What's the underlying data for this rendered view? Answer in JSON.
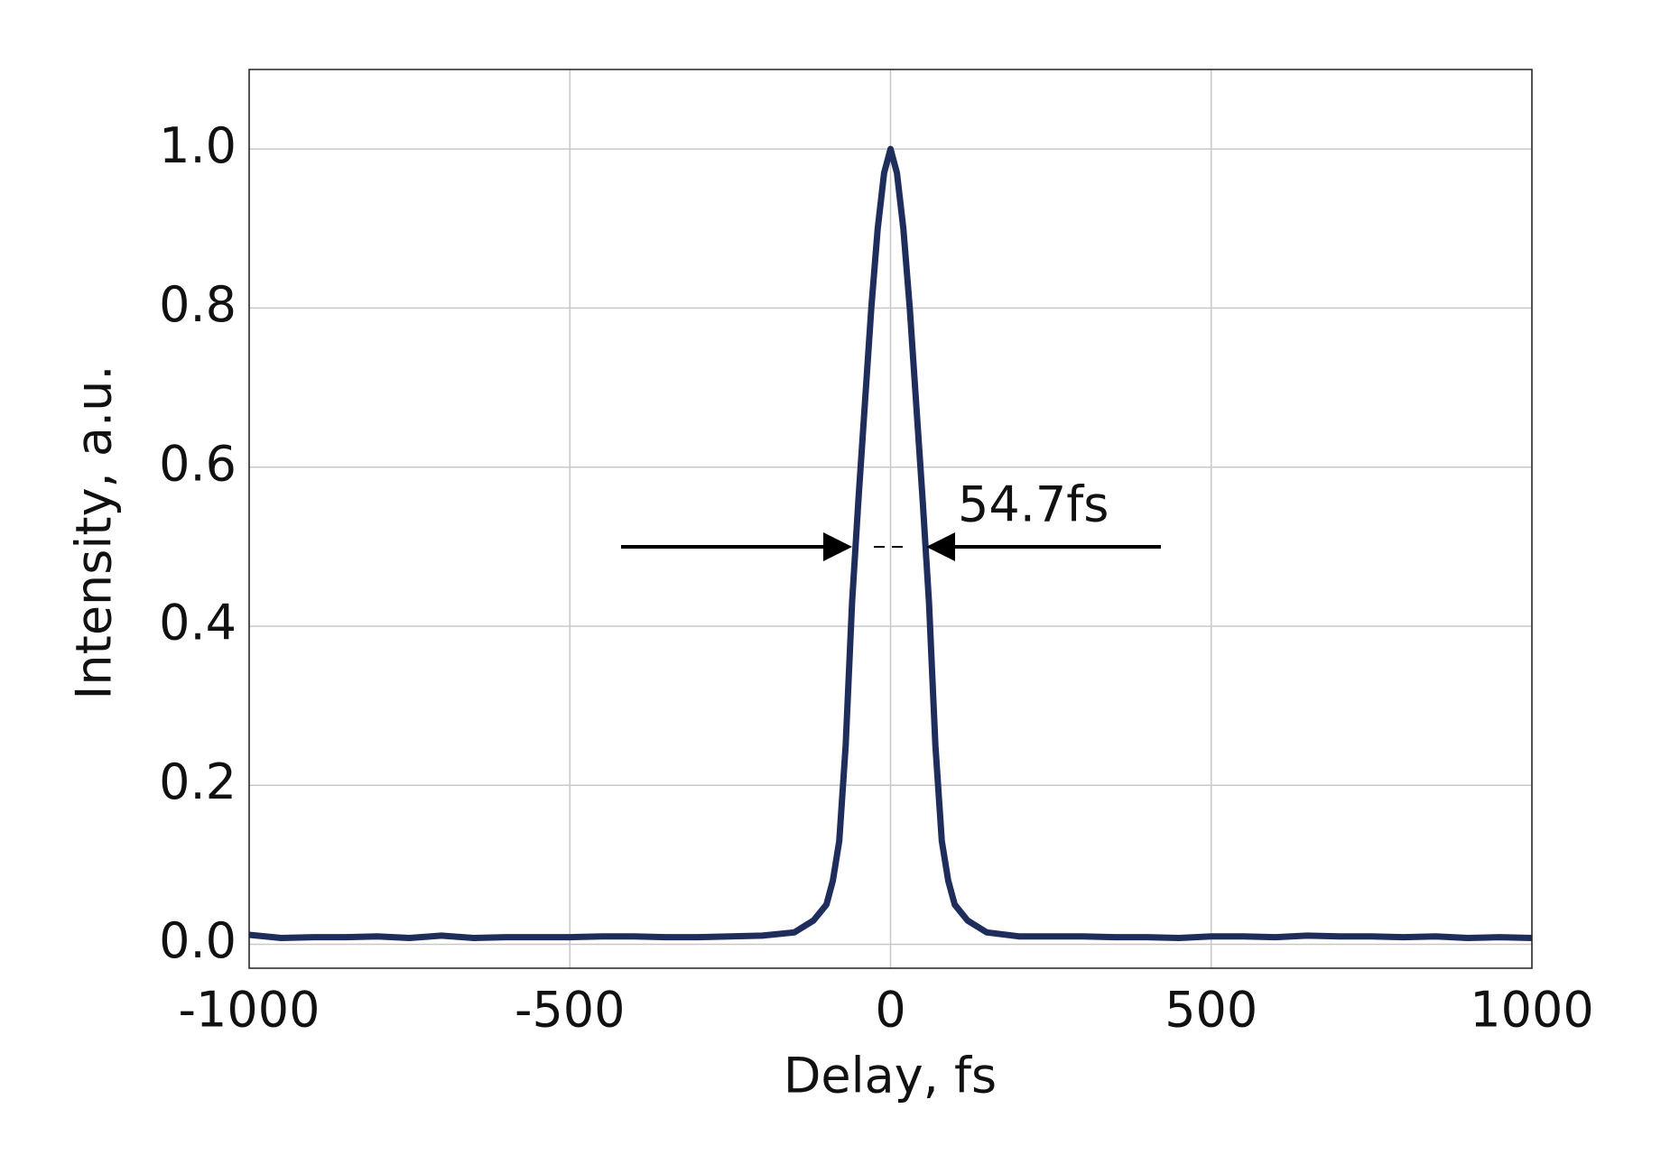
{
  "chart_data": {
    "type": "line",
    "x_label": "Delay, fs",
    "y_label": "Intensity, a.u.",
    "annotation": "54.7fs",
    "x": [
      -1000,
      -950,
      -900,
      -850,
      -800,
      -750,
      -700,
      -650,
      -600,
      -550,
      -500,
      -450,
      -400,
      -350,
      -300,
      -250,
      -200,
      -150,
      -120,
      -100,
      -90,
      -80,
      -70,
      -60,
      -50,
      -40,
      -30,
      -20,
      -10,
      0,
      10,
      20,
      30,
      40,
      50,
      60,
      70,
      80,
      90,
      100,
      120,
      150,
      200,
      250,
      300,
      350,
      400,
      450,
      500,
      550,
      600,
      650,
      700,
      750,
      800,
      850,
      900,
      950,
      1000
    ],
    "series": [
      {
        "name": "Intensity",
        "color": "#1f2d5c",
        "values": [
          0.012,
          0.008,
          0.009,
          0.009,
          0.01,
          0.008,
          0.011,
          0.008,
          0.009,
          0.009,
          0.009,
          0.01,
          0.01,
          0.009,
          0.009,
          0.01,
          0.011,
          0.015,
          0.03,
          0.05,
          0.08,
          0.13,
          0.25,
          0.43,
          0.56,
          0.68,
          0.8,
          0.9,
          0.97,
          1.0,
          0.97,
          0.9,
          0.8,
          0.68,
          0.56,
          0.43,
          0.25,
          0.13,
          0.08,
          0.05,
          0.03,
          0.015,
          0.01,
          0.01,
          0.01,
          0.009,
          0.009,
          0.008,
          0.01,
          0.01,
          0.009,
          0.011,
          0.01,
          0.01,
          0.009,
          0.01,
          0.008,
          0.009,
          0.008
        ]
      }
    ],
    "xlim": [
      -1000,
      1000
    ],
    "xticks": [
      -1000,
      -500,
      0,
      500,
      1000
    ],
    "ylim": [
      -0.03,
      1.1
    ],
    "yticks": [
      {
        "value": 0,
        "label": "0.0"
      },
      0.2,
      0.4,
      0.6,
      0.8,
      {
        "value": 1,
        "label": "1.0"
      }
    ],
    "grid": true
  }
}
